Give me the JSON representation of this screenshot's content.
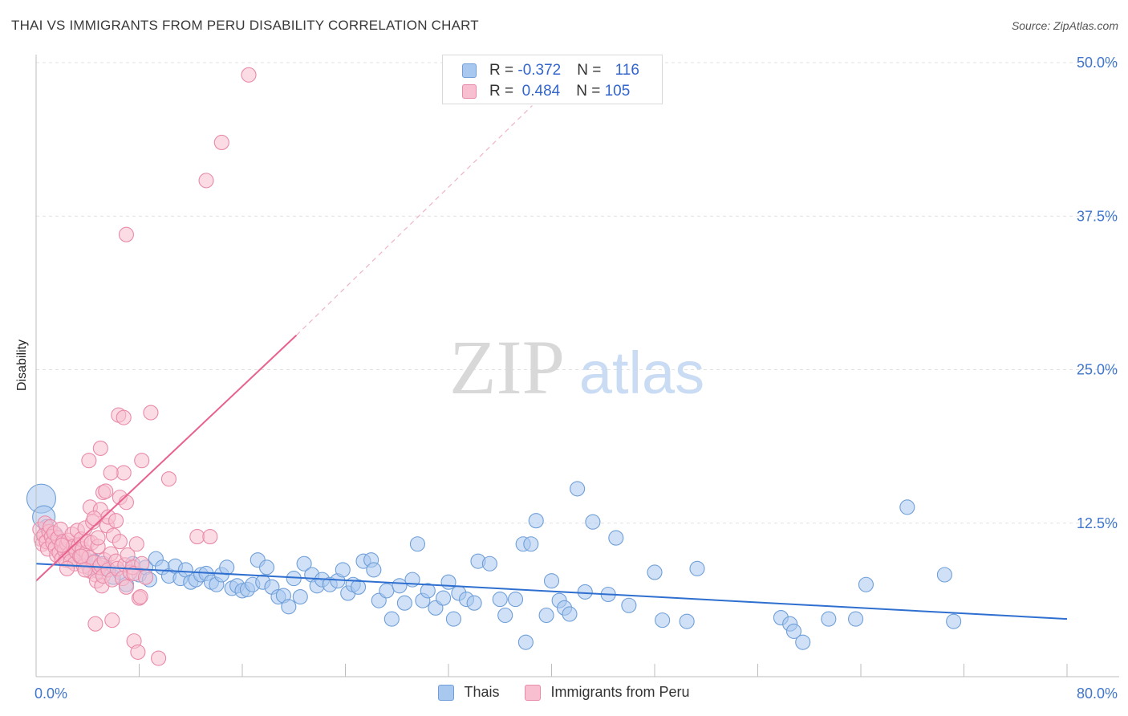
{
  "title": "THAI VS IMMIGRANTS FROM PERU DISABILITY CORRELATION CHART",
  "source": "Source: ZipAtlas.com",
  "watermark": {
    "zip": "ZIP",
    "atlas": "atlas"
  },
  "legend_top": {
    "rows": [
      {
        "r_label": "R = ",
        "r_value": "-0.372",
        "n_label": "N = ",
        "n_value": "116",
        "color": "#a9c8f0",
        "border": "#6f9fd8"
      },
      {
        "r_label": "R = ",
        "r_value": " 0.484",
        "n_label": "N = ",
        "n_value": "105",
        "color": "#f7bfd0",
        "border": "#e98aa8"
      }
    ]
  },
  "legend_bottom": [
    {
      "label": "Thais",
      "color": "#a9c8f0",
      "border": "#6f9fd8"
    },
    {
      "label": "Immigrants from Peru",
      "color": "#f7bfd0",
      "border": "#e98aa8"
    }
  ],
  "chart_data": {
    "type": "scatter",
    "title": "THAI VS IMMIGRANTS FROM PERU DISABILITY CORRELATION CHART",
    "xlabel": "",
    "ylabel": "Disability",
    "xlim": [
      0,
      80
    ],
    "ylim": [
      0,
      50
    ],
    "x_tick_labels": [
      "0.0%",
      "80.0%"
    ],
    "y_ticks": [
      12.5,
      25.0,
      37.5,
      50.0
    ],
    "y_tick_labels": [
      "12.5%",
      "25.0%",
      "37.5%",
      "50.0%"
    ],
    "grid": true,
    "legend": "top-center",
    "series": [
      {
        "name": "Thais",
        "color": "#6f9fd8",
        "fill": "#a9c8f0",
        "line_color": "#2f6fd0",
        "trend": {
          "x0": 0,
          "y0": 9.2,
          "x1": 80,
          "y1": 4.7,
          "dashed_until": null
        },
        "points": [
          [
            0.4,
            14.5
          ],
          [
            0.6,
            13.0
          ],
          [
            0.8,
            12.2
          ],
          [
            1.0,
            11.8
          ],
          [
            1.5,
            11.6
          ],
          [
            1.8,
            11.0
          ],
          [
            2.2,
            10.5
          ],
          [
            2.6,
            10.2
          ],
          [
            3.0,
            9.6
          ],
          [
            3.3,
            10.0
          ],
          [
            3.8,
            9.6
          ],
          [
            4.1,
            8.9
          ],
          [
            4.5,
            9.4
          ],
          [
            4.8,
            8.6
          ],
          [
            5.2,
            9.2
          ],
          [
            5.5,
            8.8
          ],
          [
            6.0,
            8.1
          ],
          [
            6.5,
            8.5
          ],
          [
            7.0,
            7.5
          ],
          [
            7.5,
            9.2
          ],
          [
            8.0,
            8.3
          ],
          [
            8.5,
            8.9
          ],
          [
            8.8,
            7.9
          ],
          [
            9.3,
            9.6
          ],
          [
            9.8,
            8.9
          ],
          [
            10.3,
            8.2
          ],
          [
            10.8,
            9.0
          ],
          [
            11.2,
            8.0
          ],
          [
            11.6,
            8.7
          ],
          [
            12.0,
            7.7
          ],
          [
            12.4,
            7.9
          ],
          [
            12.8,
            8.3
          ],
          [
            13.2,
            8.4
          ],
          [
            13.6,
            7.7
          ],
          [
            14.0,
            7.5
          ],
          [
            14.4,
            8.3
          ],
          [
            14.8,
            8.9
          ],
          [
            15.2,
            7.2
          ],
          [
            15.6,
            7.4
          ],
          [
            16.0,
            7.0
          ],
          [
            16.4,
            7.1
          ],
          [
            16.8,
            7.5
          ],
          [
            17.2,
            9.5
          ],
          [
            17.6,
            7.7
          ],
          [
            17.9,
            8.9
          ],
          [
            18.3,
            7.3
          ],
          [
            18.8,
            6.5
          ],
          [
            19.2,
            6.6
          ],
          [
            19.6,
            5.7
          ],
          [
            20.0,
            8.0
          ],
          [
            20.5,
            6.5
          ],
          [
            20.8,
            9.2
          ],
          [
            21.4,
            8.3
          ],
          [
            21.8,
            7.4
          ],
          [
            22.2,
            7.9
          ],
          [
            22.8,
            7.5
          ],
          [
            23.4,
            7.8
          ],
          [
            23.8,
            8.7
          ],
          [
            24.2,
            6.8
          ],
          [
            24.6,
            7.5
          ],
          [
            25.0,
            7.3
          ],
          [
            25.4,
            9.4
          ],
          [
            26.0,
            9.5
          ],
          [
            26.2,
            8.7
          ],
          [
            26.6,
            6.2
          ],
          [
            27.2,
            7.0
          ],
          [
            27.6,
            4.7
          ],
          [
            28.2,
            7.4
          ],
          [
            28.6,
            6.0
          ],
          [
            29.2,
            7.9
          ],
          [
            29.6,
            10.8
          ],
          [
            30.0,
            6.2
          ],
          [
            30.4,
            7.0
          ],
          [
            31.0,
            5.6
          ],
          [
            31.6,
            6.4
          ],
          [
            32.0,
            7.7
          ],
          [
            32.4,
            4.7
          ],
          [
            32.8,
            6.8
          ],
          [
            33.4,
            6.3
          ],
          [
            34.0,
            6.0
          ],
          [
            34.3,
            9.4
          ],
          [
            35.2,
            9.2
          ],
          [
            36.0,
            6.3
          ],
          [
            36.4,
            5.0
          ],
          [
            37.2,
            6.3
          ],
          [
            37.8,
            10.8
          ],
          [
            38.0,
            2.8
          ],
          [
            38.4,
            10.8
          ],
          [
            38.8,
            12.7
          ],
          [
            39.6,
            5.0
          ],
          [
            40.0,
            7.8
          ],
          [
            40.6,
            6.2
          ],
          [
            41.0,
            5.6
          ],
          [
            41.4,
            5.1
          ],
          [
            42.0,
            15.3
          ],
          [
            42.6,
            6.9
          ],
          [
            43.2,
            12.6
          ],
          [
            44.4,
            6.7
          ],
          [
            45.0,
            11.3
          ],
          [
            46.0,
            5.8
          ],
          [
            48.0,
            8.5
          ],
          [
            48.6,
            4.6
          ],
          [
            50.5,
            4.5
          ],
          [
            51.3,
            8.8
          ],
          [
            57.8,
            4.8
          ],
          [
            58.5,
            4.3
          ],
          [
            58.8,
            3.7
          ],
          [
            59.5,
            2.8
          ],
          [
            61.5,
            4.7
          ],
          [
            63.6,
            4.7
          ],
          [
            64.4,
            7.5
          ],
          [
            67.6,
            13.8
          ],
          [
            70.5,
            8.3
          ],
          [
            71.2,
            4.5
          ]
        ],
        "sizes": {
          "0.4": 18,
          "0.6": 14
        }
      },
      {
        "name": "Immigrants from Peru",
        "color": "#e98aa8",
        "fill": "#f7bfd0",
        "line_color": "#e8618f",
        "trend": {
          "x0": 0,
          "y0": 7.8,
          "x1": 20.2,
          "y1": 27.8,
          "dash_x1": 38.5,
          "dash_y1": 46.5
        },
        "points": [
          [
            0.3,
            12.0
          ],
          [
            0.4,
            11.2
          ],
          [
            0.5,
            10.8
          ],
          [
            0.6,
            11.5
          ],
          [
            0.7,
            12.5
          ],
          [
            0.8,
            11.0
          ],
          [
            0.9,
            10.4
          ],
          [
            1.0,
            11.8
          ],
          [
            1.1,
            12.2
          ],
          [
            1.2,
            11.4
          ],
          [
            1.3,
            10.9
          ],
          [
            1.4,
            11.7
          ],
          [
            1.5,
            10.5
          ],
          [
            1.6,
            9.9
          ],
          [
            1.7,
            11.3
          ],
          [
            1.8,
            10.1
          ],
          [
            1.9,
            12.0
          ],
          [
            2.0,
            9.6
          ],
          [
            2.1,
            11.0
          ],
          [
            2.2,
            10.3
          ],
          [
            2.3,
            9.5
          ],
          [
            2.4,
            10.8
          ],
          [
            2.5,
            11.1
          ],
          [
            2.6,
            10.0
          ],
          [
            2.7,
            9.4
          ],
          [
            2.8,
            11.6
          ],
          [
            2.9,
            10.6
          ],
          [
            3.0,
            9.2
          ],
          [
            3.1,
            10.2
          ],
          [
            3.2,
            11.9
          ],
          [
            3.3,
            10.7
          ],
          [
            3.4,
            9.8
          ],
          [
            3.5,
            11.2
          ],
          [
            3.6,
            10.4
          ],
          [
            3.7,
            9.0
          ],
          [
            3.8,
            12.1
          ],
          [
            3.9,
            10.1
          ],
          [
            4.0,
            11.0
          ],
          [
            4.1,
            9.7
          ],
          [
            4.2,
            8.6
          ],
          [
            4.3,
            10.9
          ],
          [
            4.4,
            12.6
          ],
          [
            4.5,
            9.3
          ],
          [
            4.6,
            8.3
          ],
          [
            4.7,
            7.8
          ],
          [
            4.8,
            10.6
          ],
          [
            4.9,
            8.9
          ],
          [
            5.0,
            9.1
          ],
          [
            5.1,
            7.4
          ],
          [
            5.2,
            8.2
          ],
          [
            5.3,
            9.5
          ],
          [
            5.5,
            12.3
          ],
          [
            5.6,
            8.7
          ],
          [
            5.8,
            10.0
          ],
          [
            5.9,
            7.9
          ],
          [
            6.0,
            11.5
          ],
          [
            6.2,
            9.4
          ],
          [
            6.3,
            8.8
          ],
          [
            6.5,
            11.0
          ],
          [
            6.7,
            8.0
          ],
          [
            6.9,
            9.1
          ],
          [
            7.0,
            7.3
          ],
          [
            7.1,
            9.9
          ],
          [
            7.3,
            8.5
          ],
          [
            7.5,
            8.9
          ],
          [
            7.6,
            8.4
          ],
          [
            7.8,
            10.8
          ],
          [
            8.0,
            6.4
          ],
          [
            8.2,
            9.2
          ],
          [
            8.5,
            8.1
          ],
          [
            3.5,
            9.8
          ],
          [
            4.2,
            13.8
          ],
          [
            5.0,
            13.6
          ],
          [
            5.6,
            13.0
          ],
          [
            4.5,
            12.9
          ],
          [
            6.5,
            14.6
          ],
          [
            7.0,
            14.2
          ],
          [
            5.2,
            15.0
          ],
          [
            6.8,
            16.6
          ],
          [
            5.8,
            16.6
          ],
          [
            5.0,
            18.6
          ],
          [
            4.1,
            17.6
          ],
          [
            8.2,
            17.6
          ],
          [
            10.3,
            16.1
          ],
          [
            6.4,
            21.3
          ],
          [
            6.8,
            21.1
          ],
          [
            8.9,
            21.5
          ],
          [
            7.0,
            36.0
          ],
          [
            13.2,
            40.4
          ],
          [
            14.4,
            43.5
          ],
          [
            16.5,
            49.0
          ],
          [
            12.5,
            11.4
          ],
          [
            13.5,
            11.4
          ],
          [
            4.6,
            4.3
          ],
          [
            7.6,
            2.9
          ],
          [
            7.9,
            2.0
          ],
          [
            9.5,
            1.5
          ],
          [
            8.1,
            6.5
          ],
          [
            5.9,
            4.6
          ],
          [
            2.4,
            8.8
          ],
          [
            3.8,
            8.7
          ],
          [
            6.2,
            12.7
          ],
          [
            5.4,
            15.1
          ],
          [
            4.8,
            11.3
          ],
          [
            2.0,
            10.7
          ]
        ]
      }
    ]
  }
}
